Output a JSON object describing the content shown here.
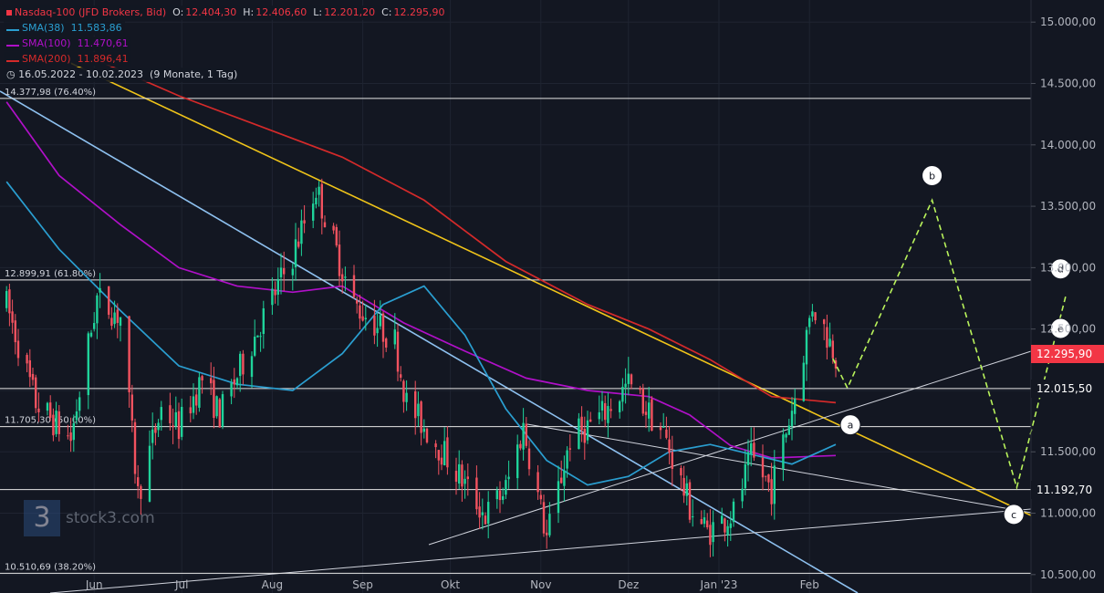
{
  "chart_data": {
    "type": "candlestick",
    "instrument": "Nasdaq-100 (JFD Brokers, Bid)",
    "ohlc": {
      "O": "O:",
      "O_val": "12.404,30",
      "H": "H:",
      "H_val": "12.406,60",
      "L": "L:",
      "L_val": "12.201,20",
      "C": "C:",
      "C_val": "12.295,90"
    },
    "indicators": [
      {
        "name": "SMA(38)",
        "value": "11.583,86",
        "color": "#2a9ed0"
      },
      {
        "name": "SMA(100)",
        "value": "11.470,61",
        "color": "#b010c8"
      },
      {
        "name": "SMA(200)",
        "value": "11.896,41",
        "color": "#d42a2a"
      }
    ],
    "range_label": "16.05.2022 - 10.02.2023",
    "range_period": "(9 Monate, 1 Tag)",
    "ylim": [
      10350,
      15180
    ],
    "y_ticks": [
      {
        "v": 15000,
        "label": "15.000,00"
      },
      {
        "v": 14500,
        "label": "14.500,00"
      },
      {
        "v": 14000,
        "label": "14.000,00"
      },
      {
        "v": 13500,
        "label": "13.500,00"
      },
      {
        "v": 13000,
        "label": "13.000,00"
      },
      {
        "v": 12500,
        "label": "12.500,00"
      },
      {
        "v": 12000,
        "label": "12.000,00"
      },
      {
        "v": 11500,
        "label": "11.500,00"
      },
      {
        "v": 11000,
        "label": "11.000,00"
      },
      {
        "v": 10500,
        "label": "10.500,00"
      }
    ],
    "x_ticks": [
      "Jun",
      "Jul",
      "Aug",
      "Sep",
      "Okt",
      "Nov",
      "Dez",
      "Jan '23",
      "Feb"
    ],
    "fib_levels": [
      {
        "v": 14377.98,
        "label": "14.377,98 (76.40%)"
      },
      {
        "v": 12899.91,
        "label": "12.899,91 (61.80%)"
      },
      {
        "v": 11705.3,
        "label": "11.705,30 (50.00%)"
      },
      {
        "v": 10510.69,
        "label": "10.510,69 (38.20%)"
      }
    ],
    "price_levels": [
      {
        "v": 12295.9,
        "label": "12.295,90",
        "color": "#f23645"
      },
      {
        "v": 12015.5,
        "label": "12.015,50",
        "color": "#131722"
      },
      {
        "v": 11192.7,
        "label": "11.192,70",
        "color": "#131722"
      }
    ],
    "wave_labels": [
      {
        "name": "b",
        "date": "2023-03-15",
        "v": 13750
      },
      {
        "name": "d",
        "date": "2023-04-28",
        "v": 12990
      },
      {
        "name": "e",
        "date": "2023-04-28",
        "v": 12505
      },
      {
        "name": "a",
        "date": "2023-02-15",
        "v": 11720
      },
      {
        "name": "c",
        "date": "2023-04-12",
        "v": 10990
      }
    ],
    "projection": [
      {
        "date": "2023-02-09",
        "v": 12260
      },
      {
        "date": "2023-02-14",
        "v": 12020
      },
      {
        "date": "2023-03-15",
        "v": 13550
      },
      {
        "date": "2023-04-13",
        "v": 11210
      },
      {
        "date": "2023-04-30",
        "v": 12790
      }
    ],
    "watermark": "stock3.com"
  }
}
